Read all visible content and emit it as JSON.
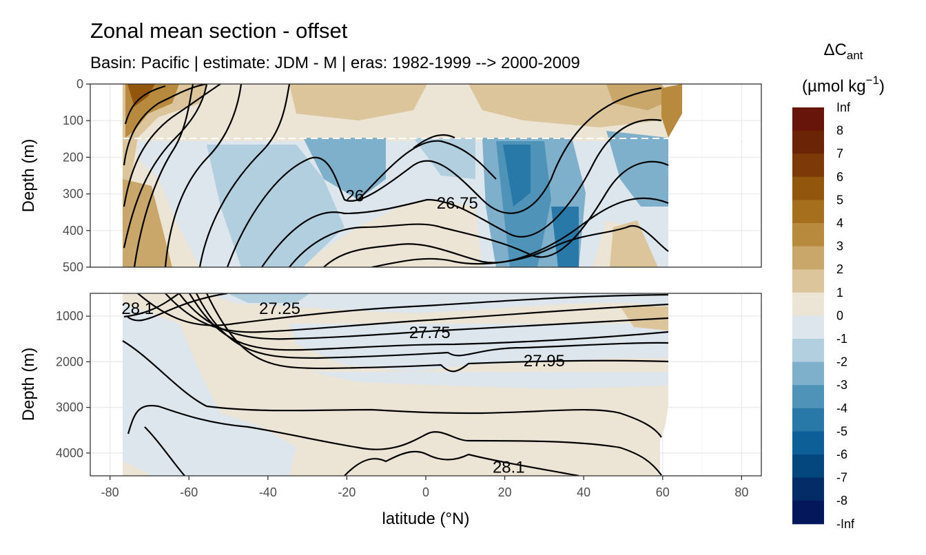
{
  "chart_data": {
    "type": "heatmap",
    "title": "Zonal mean section - offset",
    "subtitle": "Basin: Pacific | estimate: JDM - M | eras: 1982-1999 --> 2000-2009",
    "xlabel": "latitude (°N)",
    "ylabel": "Depth (m)",
    "xlim": [
      -85,
      85
    ],
    "x_ticks": [
      "-80",
      "-60",
      "-40",
      "-20",
      "0",
      "20",
      "40",
      "60",
      "80"
    ],
    "x_tick_values": [
      -80,
      -60,
      -40,
      -20,
      0,
      20,
      40,
      60,
      80
    ],
    "data_lat_range": [
      -78,
      64
    ],
    "grid": true,
    "panels": [
      {
        "name": "upper",
        "ylim": [
          500,
          0
        ],
        "y_ticks": [
          "0",
          "100",
          "200",
          "300",
          "400",
          "500"
        ],
        "y_tick_values": [
          0,
          100,
          200,
          300,
          400,
          500
        ],
        "reference_line_depth": 150
      },
      {
        "name": "lower",
        "ylim": [
          4500,
          500
        ],
        "y_ticks": [
          "1000",
          "2000",
          "3000",
          "4000"
        ],
        "y_tick_values": [
          1000,
          2000,
          3000,
          4000
        ]
      }
    ],
    "contour_labels": [
      {
        "text": "26",
        "panel": "upper",
        "lat": -18,
        "depth": 305
      },
      {
        "text": "26.75",
        "panel": "upper",
        "lat": 8,
        "depth": 325
      },
      {
        "text": "28.1",
        "panel": "lower",
        "lat": -73,
        "depth": 830
      },
      {
        "text": "27.25",
        "panel": "lower",
        "lat": -37,
        "depth": 830
      },
      {
        "text": "27.75",
        "panel": "lower",
        "lat": 1,
        "depth": 1360
      },
      {
        "text": "27.95",
        "panel": "lower",
        "lat": 30,
        "depth": 1980
      },
      {
        "text": "28.1",
        "panel": "lower",
        "lat": 21,
        "depth": 4310
      }
    ],
    "legend": {
      "title_main": "ΔC",
      "title_sub": "ant",
      "title_unit": "(µmol kg",
      "title_sup": "−1",
      "title_close": ")",
      "placement": "right",
      "bins": [
        {
          "label": "Inf",
          "color": "#67140a"
        },
        {
          "label": "8",
          "color": "#6b2405"
        },
        {
          "label": "7",
          "color": "#7d3a08"
        },
        {
          "label": "6",
          "color": "#93560d"
        },
        {
          "label": "5",
          "color": "#a56f1e"
        },
        {
          "label": "4",
          "color": "#b88a3e"
        },
        {
          "label": "3",
          "color": "#c9a669"
        },
        {
          "label": "2",
          "color": "#dcc59b"
        },
        {
          "label": "1",
          "color": "#ece4d5"
        },
        {
          "label": "0",
          "color": "#dde6ec"
        },
        {
          "label": "-1",
          "color": "#b2cfe0"
        },
        {
          "label": "-2",
          "color": "#7eb0cc"
        },
        {
          "label": "-3",
          "color": "#4f93b8"
        },
        {
          "label": "-4",
          "color": "#2879a7"
        },
        {
          "label": "-5",
          "color": "#0c5f97"
        },
        {
          "label": "-6",
          "color": "#03477e"
        },
        {
          "label": "-7",
          "color": "#042d68"
        },
        {
          "label": "-8",
          "color": "#03175a"
        },
        {
          "label": "-Inf",
          "color": ""
        }
      ]
    }
  }
}
